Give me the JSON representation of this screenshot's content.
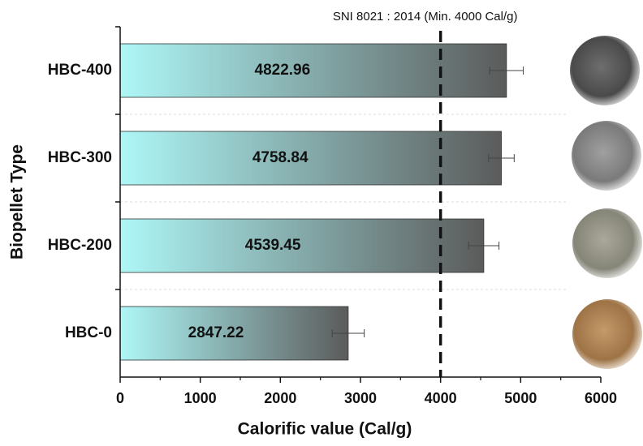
{
  "chart_data": {
    "type": "bar",
    "orientation": "horizontal",
    "x_label": "Calorific value  (Cal/g)",
    "y_label": "Biopellet Type",
    "categories": [
      "HBC-400",
      "HBC-300",
      "HBC-200",
      "HBC-0"
    ],
    "values": [
      4822.96,
      4758.84,
      4539.45,
      2847.22
    ],
    "errors": [
      210,
      160,
      190,
      200
    ],
    "color_start": "#aef7f7",
    "color_end": "#5b5b5b",
    "xlim": [
      0,
      6000
    ],
    "xticks": [
      0,
      1000,
      2000,
      3000,
      4000,
      5000,
      6000
    ],
    "minor_xticks": [
      500,
      1500,
      2500,
      3500,
      4500,
      5500
    ],
    "reference_line": {
      "value": 4000,
      "label": "SNI 8021 : 2014 (Min. 4000 Cal/g)"
    }
  }
}
